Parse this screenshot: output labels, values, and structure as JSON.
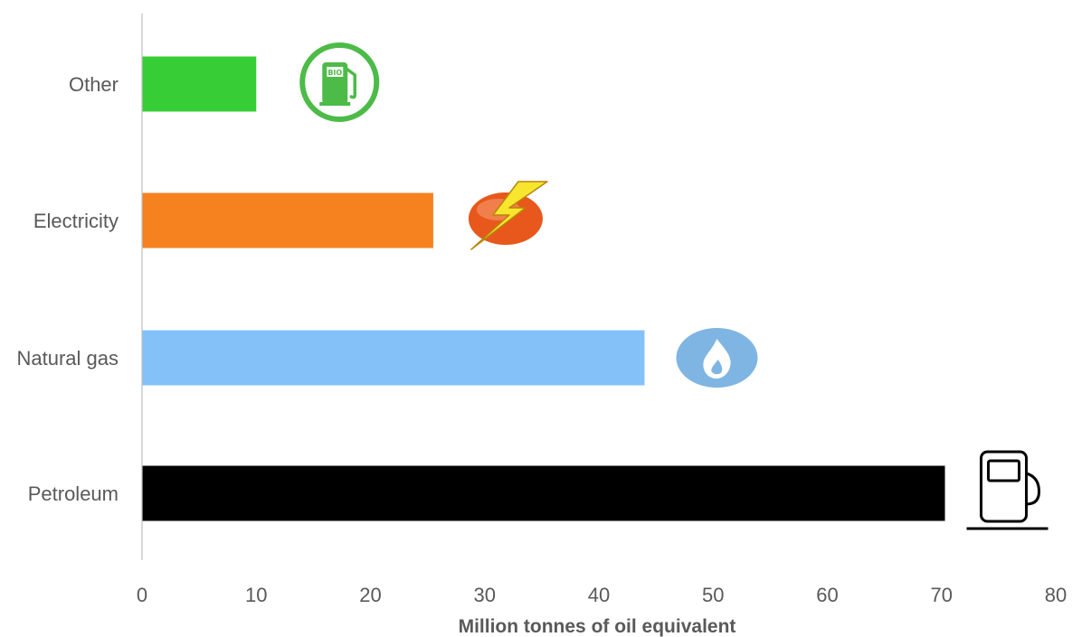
{
  "chart_data": {
    "type": "bar",
    "orientation": "horizontal",
    "categories": [
      "Petroleum",
      "Natural gas",
      "Electricity",
      "Other"
    ],
    "values": [
      70.3,
      44,
      25.5,
      10
    ],
    "colors": [
      "#000000",
      "#85C1F9",
      "#F5821F",
      "#36CD36"
    ],
    "icons": [
      "fuel-pump-icon",
      "flame-icon",
      "lightning-icon",
      "bio-fuel-icon"
    ],
    "xlabel": "Million tonnes of oil equivalent",
    "ylabel": "",
    "xlim": [
      0,
      80
    ],
    "xticks": [
      0,
      10,
      20,
      30,
      40,
      50,
      60,
      70,
      80
    ],
    "grid": false,
    "legend": "none"
  }
}
